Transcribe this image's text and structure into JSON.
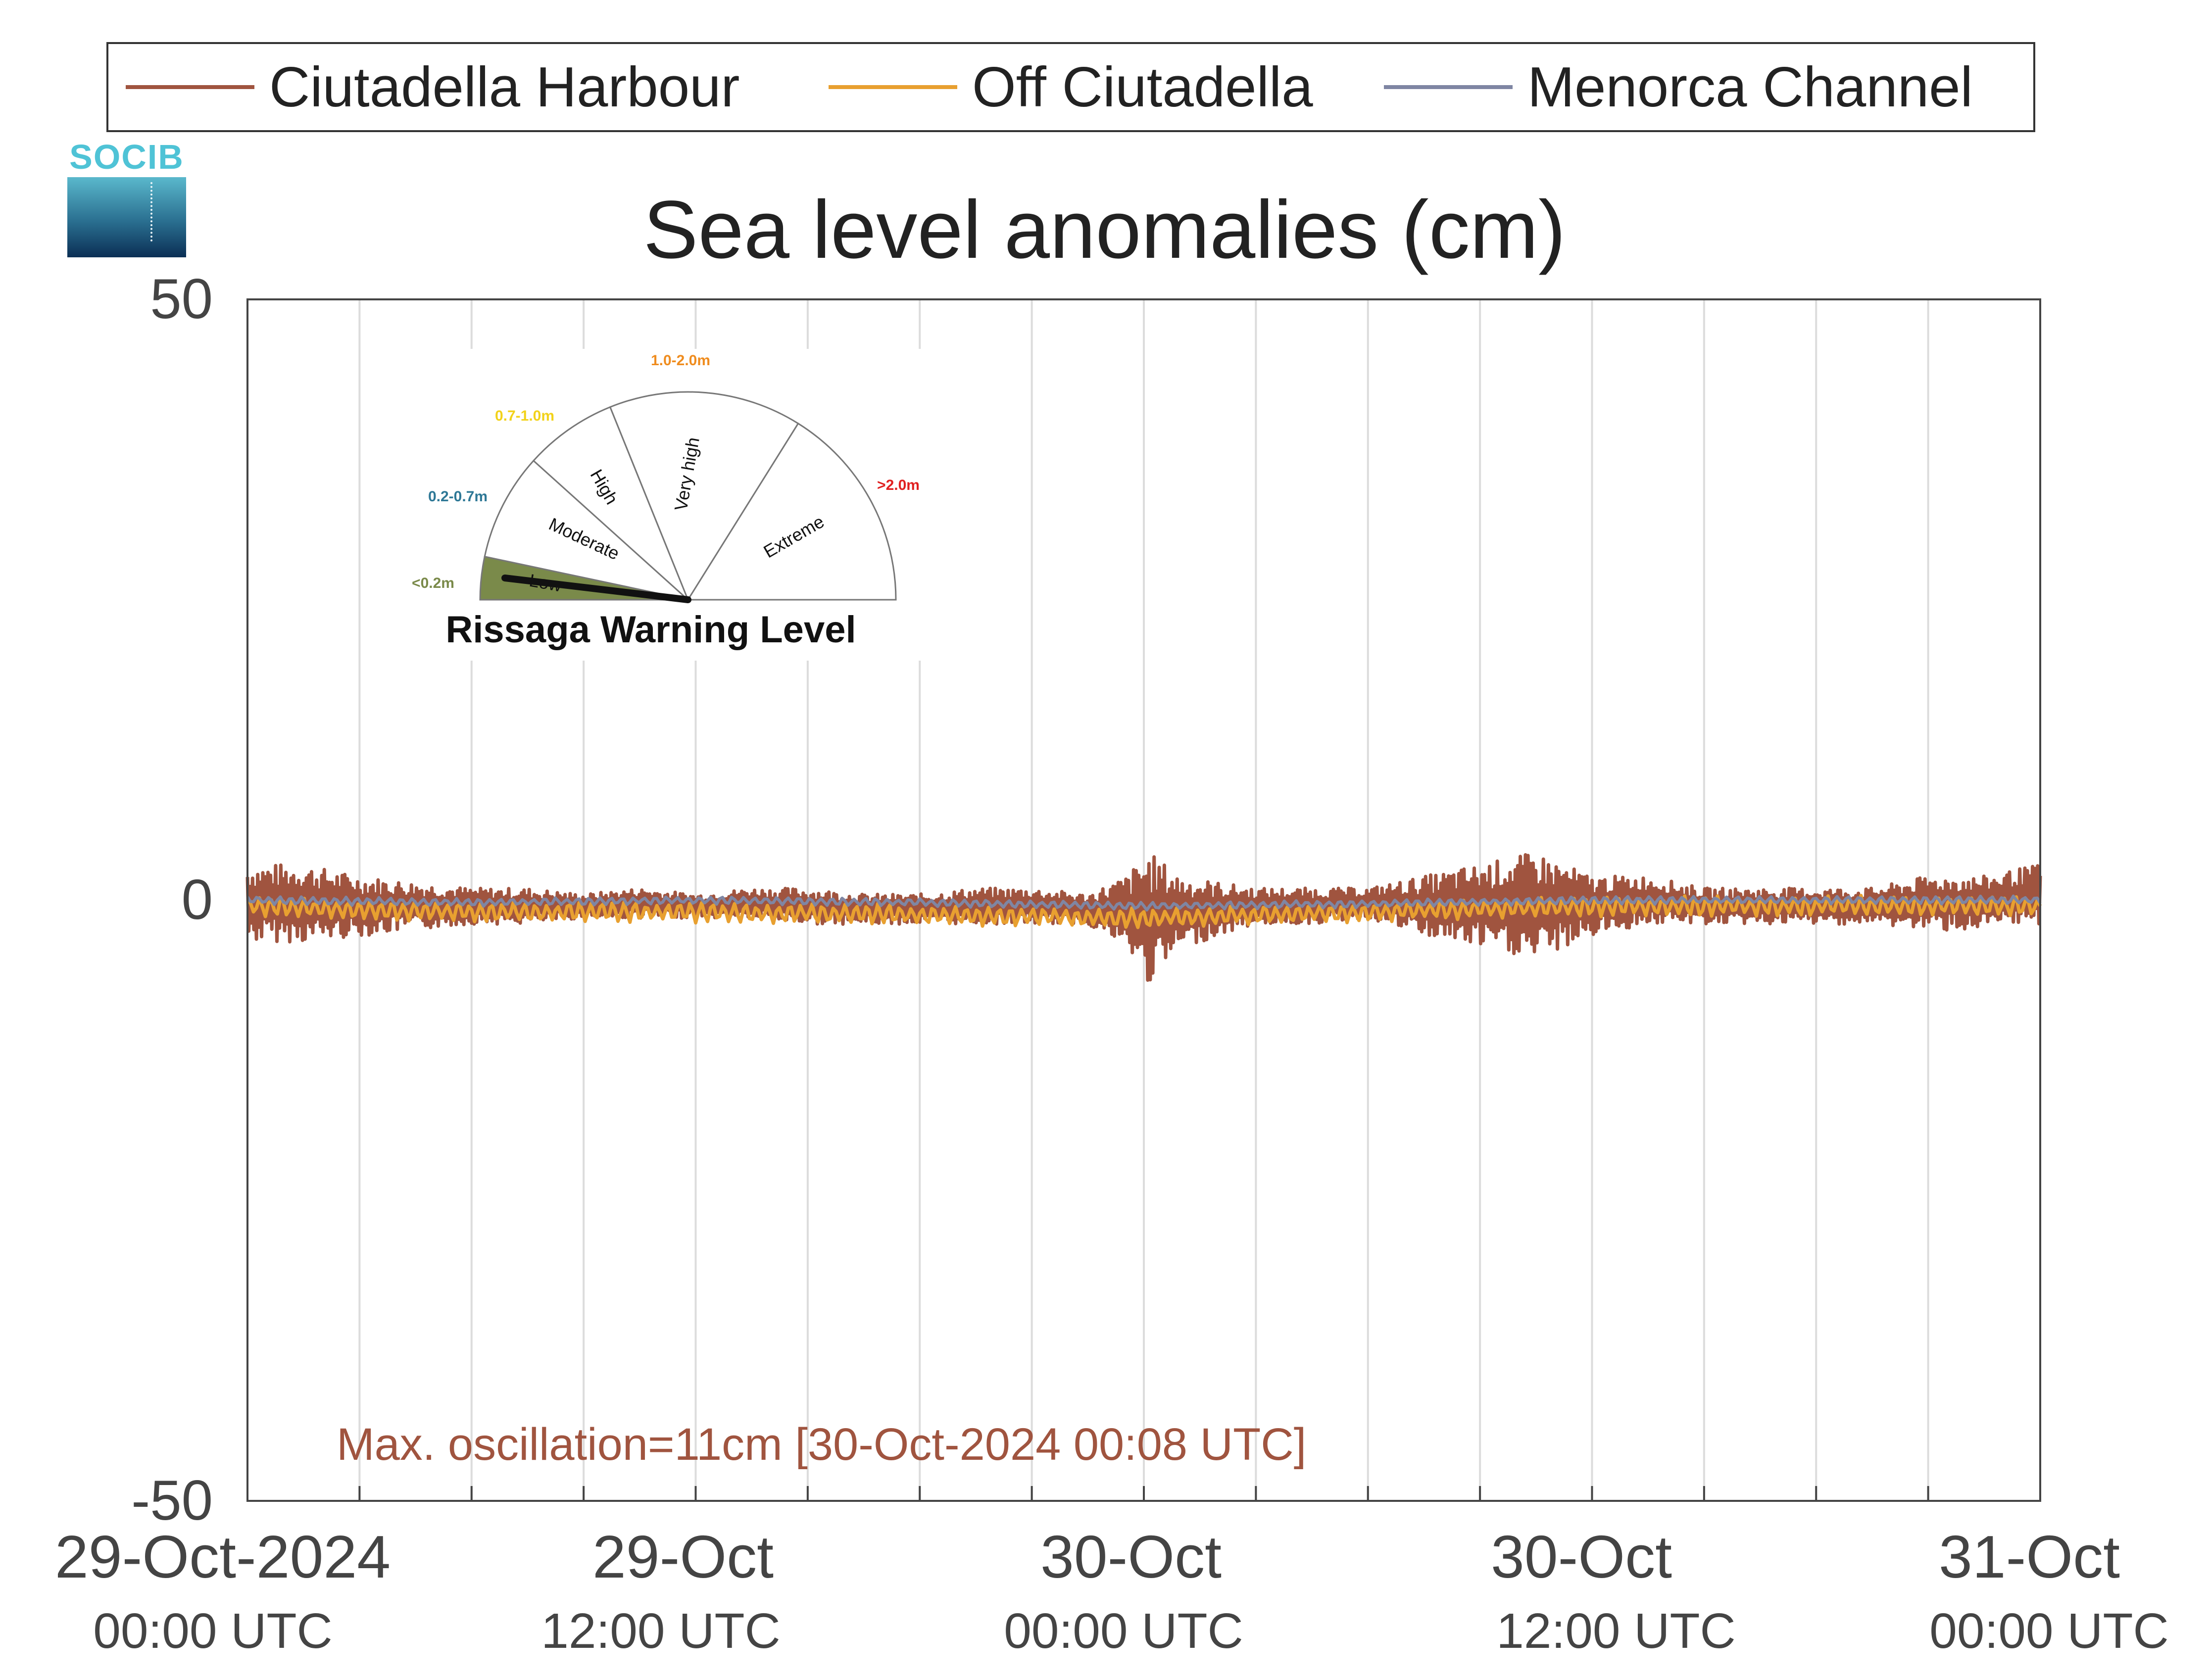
{
  "chart_data": {
    "type": "line",
    "title": "Sea level anomalies (cm)",
    "xlabel": "",
    "ylabel": "",
    "ylim": [
      -50,
      50
    ],
    "yticks": [
      "50",
      "0",
      "-50"
    ],
    "xlim": [
      "2024-10-29 00:00",
      "2024-10-31 00:00"
    ],
    "xticks": [
      {
        "line1": "29-Oct-2024",
        "line2": "00:00 UTC"
      },
      {
        "line1": "29-Oct",
        "line2": "12:00 UTC"
      },
      {
        "line1": "30-Oct",
        "line2": "00:00 UTC"
      },
      {
        "line1": "30-Oct",
        "line2": "12:00 UTC"
      },
      {
        "line1": "31-Oct",
        "line2": "00:00 UTC"
      }
    ],
    "grid": "vertical every 3 hours",
    "legend_position": "top",
    "series": [
      {
        "name": "Ciutadella Harbour",
        "color": "#a0543f",
        "x": [
          "2024-10-29 00:00",
          "2024-10-29 01:30",
          "2024-10-29 03:00",
          "2024-10-29 04:30",
          "2024-10-29 06:00",
          "2024-10-29 07:30",
          "2024-10-29 09:00",
          "2024-10-29 10:30",
          "2024-10-29 12:00",
          "2024-10-29 13:30",
          "2024-10-29 15:00",
          "2024-10-29 16:30",
          "2024-10-29 18:00",
          "2024-10-29 19:30",
          "2024-10-29 21:00",
          "2024-10-29 22:30",
          "2024-10-29 23:30",
          "2024-10-30 00:08",
          "2024-10-30 01:00",
          "2024-10-30 03:00",
          "2024-10-30 04:30",
          "2024-10-30 06:00",
          "2024-10-30 07:30",
          "2024-10-30 09:00",
          "2024-10-30 10:30",
          "2024-10-30 12:00",
          "2024-10-30 13:30",
          "2024-10-30 15:00",
          "2024-10-30 16:30",
          "2024-10-30 18:00",
          "2024-10-30 19:30",
          "2024-10-30 21:00",
          "2024-10-30 22:30",
          "2024-10-31 00:00"
        ],
        "upper": [
          3,
          3,
          2,
          1.5,
          1,
          1,
          0.5,
          1,
          0.5,
          1,
          1,
          0.5,
          0.5,
          1,
          1,
          0.5,
          2,
          4,
          2,
          1,
          1,
          1,
          2,
          3,
          4,
          2,
          2,
          1,
          1,
          1,
          1,
          2,
          2,
          3
        ],
        "lower": [
          -3.5,
          -3.5,
          -3,
          -2.5,
          -2,
          -2,
          -1.5,
          -1.5,
          -1.5,
          -1.5,
          -2,
          -2,
          -2,
          -2,
          -2,
          -2,
          -4,
          -7,
          -4,
          -2,
          -2,
          -1.5,
          -3,
          -4,
          -5,
          -3,
          -2,
          -2,
          -2,
          -2,
          -2,
          -2.5,
          -2.5,
          -2
        ]
      },
      {
        "name": "Off Ciutadella",
        "color": "#e8a030",
        "x": [
          "2024-10-29 00:00",
          "2024-10-29 06:00",
          "2024-10-29 12:00",
          "2024-10-29 18:00",
          "2024-10-30 00:00",
          "2024-10-30 06:00",
          "2024-10-30 12:00",
          "2024-10-30 18:00",
          "2024-10-31 00:00"
        ],
        "values": [
          -0.5,
          -1,
          -1,
          -1.2,
          -1.5,
          -1,
          -0.5,
          -0.5,
          -0.5
        ]
      },
      {
        "name": "Menorca Channel",
        "color": "#7f86a3",
        "x": [
          "2024-10-29 00:00",
          "2024-10-29 06:00",
          "2024-10-29 12:00",
          "2024-10-29 18:00",
          "2024-10-30 00:00",
          "2024-10-30 06:00",
          "2024-10-30 12:00",
          "2024-10-30 18:00",
          "2024-10-31 00:00"
        ],
        "values": [
          0,
          -0.2,
          0,
          -0.2,
          -0.5,
          -0.3,
          0,
          0,
          0
        ]
      }
    ],
    "annotation": "Max. oscillation=11cm [30-Oct-2024 00:08 UTC]",
    "annotation_color": "#a0543f"
  },
  "logo": {
    "text": "SOCIB"
  },
  "gauge": {
    "title": "Rissaga Warning Level",
    "current_level": "Low",
    "segments": [
      {
        "name": "Low",
        "range": "<0.2m",
        "color": "#7a8a4a"
      },
      {
        "name": "Moderate",
        "range": "0.2-0.7m",
        "color": "#2e7896"
      },
      {
        "name": "High",
        "range": "0.7-1.0m",
        "color": "#f2d21a"
      },
      {
        "name": "Very high",
        "range": "1.0-2.0m",
        "color": "#ef8c1e"
      },
      {
        "name": "Extreme",
        "range": ">2.0m",
        "color": "#e02020"
      }
    ]
  }
}
